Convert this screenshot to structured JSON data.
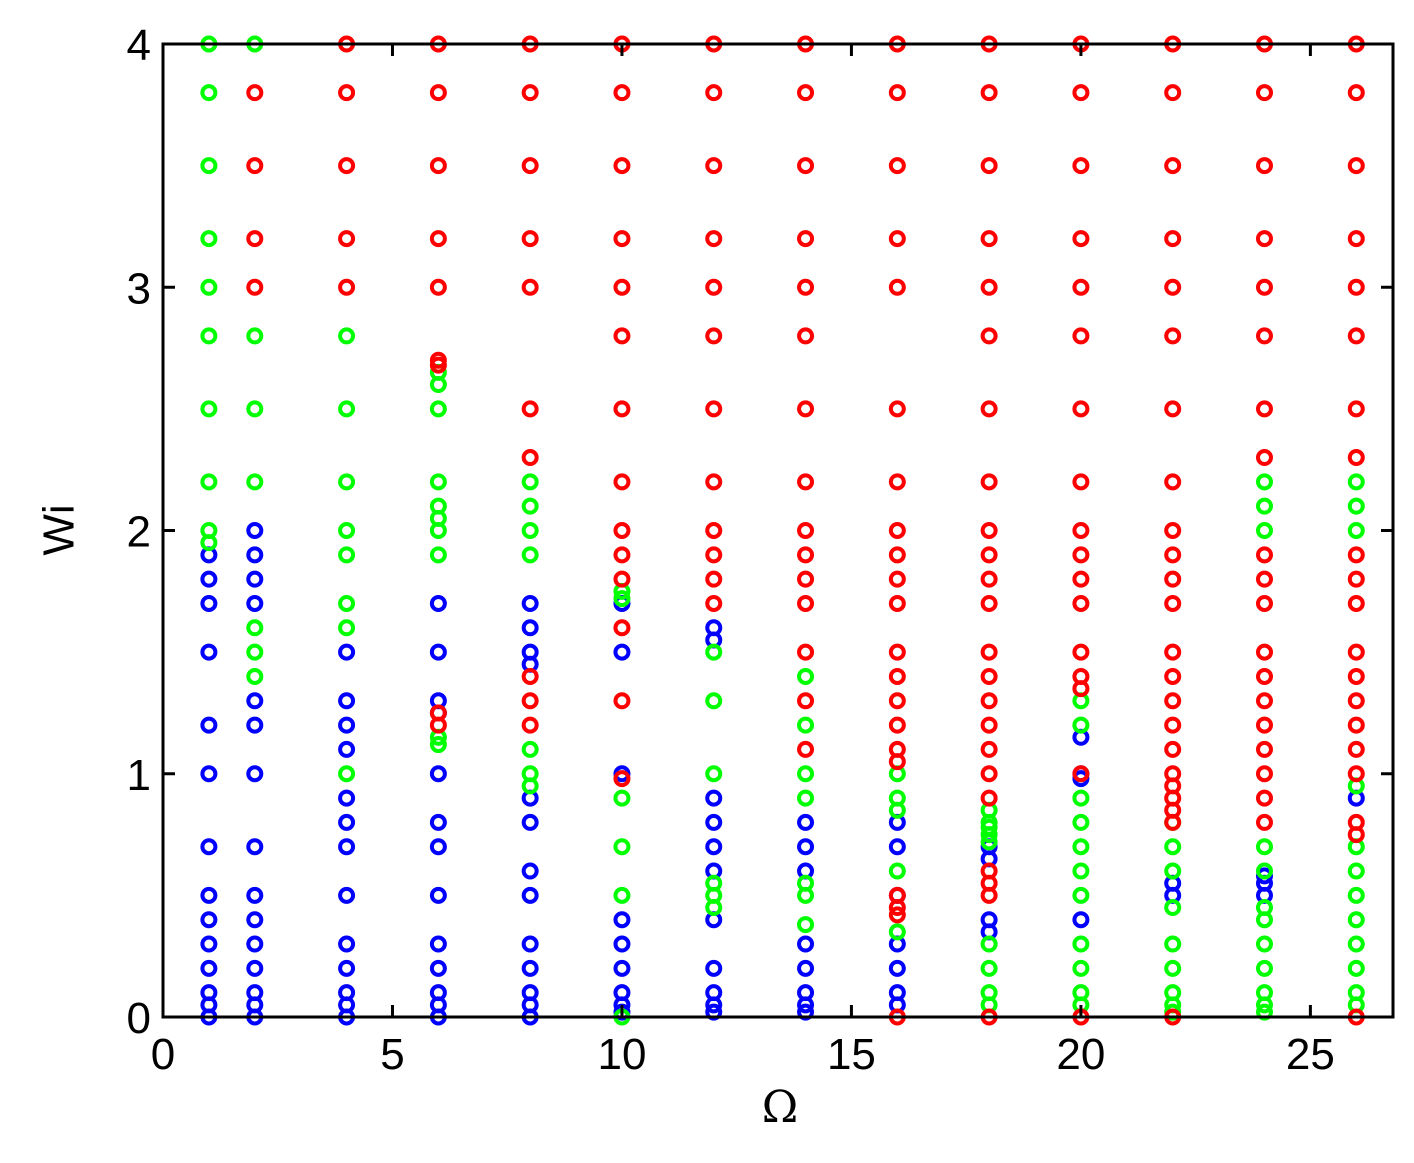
{
  "chart_data": {
    "type": "scatter",
    "xlabel": "Ω",
    "ylabel": "Wi",
    "xlim": [
      0,
      26.8
    ],
    "ylim": [
      0,
      4
    ],
    "xticks": [
      0,
      5,
      10,
      15,
      20,
      25
    ],
    "yticks": [
      0,
      1,
      2,
      3,
      4
    ],
    "series": [
      {
        "color": "#0000ff",
        "x": [
          1,
          1,
          1,
          1,
          1,
          1,
          1,
          1,
          1,
          1,
          1,
          1,
          1,
          1,
          2,
          2,
          2,
          2,
          2,
          2,
          2,
          2,
          2,
          2,
          2,
          2,
          2,
          2,
          2,
          4,
          4,
          4,
          4,
          4,
          4,
          4,
          4,
          4,
          4,
          4,
          4,
          4,
          6,
          6,
          6,
          6,
          6,
          6,
          6,
          6,
          6,
          6,
          6,
          6,
          6,
          8,
          8,
          8,
          8,
          8,
          8,
          8,
          8,
          8,
          8,
          8,
          8,
          8,
          10,
          10,
          10,
          10,
          10,
          10,
          10,
          10,
          10,
          12,
          12,
          12,
          12,
          12,
          12,
          12,
          12,
          12,
          12,
          12,
          14,
          14,
          14,
          14,
          14,
          14,
          14,
          14,
          16,
          16,
          16,
          16,
          16,
          16,
          16,
          18,
          18,
          18,
          18,
          20,
          20,
          20,
          20,
          22,
          22,
          24,
          24,
          24,
          26
        ],
        "y": [
          1.9,
          1.8,
          1.7,
          1.5,
          1.2,
          1.0,
          0.7,
          0.5,
          0.4,
          0.3,
          0.2,
          0.1,
          0.05,
          0,
          2.0,
          1.9,
          1.8,
          1.7,
          1.3,
          1.2,
          1.0,
          0.7,
          0.5,
          0.4,
          0.3,
          0.2,
          0.1,
          0.05,
          0,
          1.5,
          1.3,
          1.2,
          1.1,
          0.9,
          0.8,
          0.7,
          0.5,
          0.3,
          0.2,
          0.1,
          0.05,
          0,
          1.7,
          1.5,
          1.3,
          1.25,
          1.0,
          0.8,
          0.7,
          0.5,
          0.3,
          0.2,
          0.1,
          0.05,
          0,
          1.7,
          1.6,
          1.5,
          1.45,
          0.9,
          0.8,
          0.6,
          0.5,
          0.3,
          0.2,
          0.1,
          0.05,
          0,
          1.7,
          1.5,
          1.0,
          0.4,
          0.3,
          0.2,
          0.1,
          0.05,
          0.02,
          1.6,
          1.55,
          0.9,
          0.8,
          0.7,
          0.6,
          0.4,
          0.2,
          0.1,
          0.05,
          0.02,
          0.8,
          0.7,
          0.6,
          0.3,
          0.2,
          0.1,
          0.05,
          0.02,
          0.8,
          0.7,
          0.5,
          0.3,
          0.2,
          0.1,
          0.05,
          0.7,
          0.65,
          0.4,
          0.35,
          1.15,
          1.0,
          0.98,
          0.4,
          0.55,
          0.5,
          0.58,
          0.55,
          0.5,
          0.9
        ]
      },
      {
        "color": "#00ff00",
        "x": [
          1,
          1,
          1,
          1,
          1,
          1,
          1,
          1,
          1,
          1,
          2,
          2,
          2,
          2,
          2,
          2,
          2,
          4,
          4,
          4,
          4,
          4,
          4,
          4,
          4,
          6,
          6,
          6,
          6,
          6,
          6,
          6,
          6,
          6,
          6,
          8,
          8,
          8,
          8,
          8,
          8,
          8,
          10,
          10,
          10,
          10,
          10,
          10,
          12,
          12,
          12,
          12,
          12,
          12,
          14,
          14,
          14,
          14,
          14,
          14,
          14,
          16,
          16,
          16,
          16,
          16,
          18,
          18,
          18,
          18,
          18,
          18,
          18,
          18,
          18,
          20,
          20,
          20,
          20,
          20,
          20,
          20,
          20,
          20,
          20,
          20,
          22,
          22,
          22,
          22,
          22,
          22,
          22,
          22,
          22,
          24,
          24,
          24,
          24,
          24,
          24,
          24,
          24,
          24,
          24,
          24,
          24,
          26,
          26,
          26,
          26,
          26,
          26,
          26,
          26,
          26,
          26,
          26,
          26
        ],
        "y": [
          4,
          3.8,
          3.5,
          3.2,
          3.0,
          2.8,
          2.5,
          2.2,
          2.0,
          1.95,
          4,
          2.8,
          2.5,
          2.2,
          1.6,
          1.5,
          1.4,
          2.8,
          2.5,
          2.2,
          2.0,
          1.9,
          1.7,
          1.6,
          1.0,
          2.65,
          2.6,
          2.5,
          2.2,
          2.1,
          2.05,
          2.0,
          1.9,
          1.15,
          1.12,
          2.2,
          2.1,
          2.0,
          1.9,
          1.1,
          1.0,
          0.95,
          1.75,
          1.72,
          0.9,
          0.7,
          0.5,
          0,
          1.5,
          1.3,
          1.0,
          0.55,
          0.5,
          0.45,
          1.4,
          1.2,
          1.0,
          0.9,
          0.55,
          0.5,
          0.38,
          1.0,
          0.9,
          0.85,
          0.6,
          0.35,
          0.85,
          0.8,
          0.78,
          0.75,
          0.72,
          0.3,
          0.2,
          0.1,
          0.05,
          1.3,
          1.2,
          0.9,
          0.8,
          0.7,
          0.6,
          0.5,
          0.3,
          0.2,
          0.1,
          0.05,
          0.8,
          0.7,
          0.6,
          0.45,
          0.3,
          0.2,
          0.1,
          0.05,
          0.02,
          2.2,
          2.1,
          2.0,
          0.7,
          0.6,
          0.45,
          0.4,
          0.3,
          0.2,
          0.1,
          0.05,
          0.02,
          2.2,
          2.1,
          2.0,
          0.95,
          0.7,
          0.6,
          0.5,
          0.4,
          0.3,
          0.2,
          0.1,
          0.05
        ]
      },
      {
        "color": "#ff0000",
        "x": [
          2,
          2,
          2,
          2,
          4,
          4,
          4,
          4,
          4,
          6,
          6,
          6,
          6,
          6,
          6,
          6,
          6,
          6,
          8,
          8,
          8,
          8,
          8,
          8,
          8,
          8,
          8,
          8,
          10,
          10,
          10,
          10,
          10,
          10,
          10,
          10,
          10,
          10,
          10,
          10,
          10,
          10,
          12,
          12,
          12,
          12,
          12,
          12,
          12,
          12,
          12,
          12,
          12,
          12,
          14,
          14,
          14,
          14,
          14,
          14,
          14,
          14,
          14,
          14,
          14,
          14,
          14,
          14,
          14,
          16,
          16,
          16,
          16,
          16,
          16,
          16,
          16,
          16,
          16,
          16,
          16,
          16,
          16,
          16,
          16,
          16,
          16,
          16,
          16,
          16,
          18,
          18,
          18,
          18,
          18,
          18,
          18,
          18,
          18,
          18,
          18,
          18,
          18,
          18,
          18,
          18,
          18,
          18,
          18,
          18,
          18,
          18,
          18,
          20,
          20,
          20,
          20,
          20,
          20,
          20,
          20,
          20,
          20,
          20,
          20,
          20,
          20,
          20,
          20,
          20,
          22,
          22,
          22,
          22,
          22,
          22,
          22,
          22,
          22,
          22,
          22,
          22,
          22,
          22,
          22,
          22,
          22,
          22,
          22,
          22,
          22,
          22,
          22,
          24,
          24,
          24,
          24,
          24,
          24,
          24,
          24,
          24,
          24,
          24,
          24,
          24,
          24,
          24,
          24,
          24,
          24,
          24,
          26,
          26,
          26,
          26,
          26,
          26,
          26,
          26,
          26,
          26,
          26,
          26,
          26,
          26,
          26,
          26,
          26,
          26,
          26,
          26
        ],
        "y": [
          3.8,
          3.5,
          3.2,
          3.0,
          4,
          3.8,
          3.5,
          3.2,
          3.0,
          4,
          3.8,
          3.5,
          3.2,
          3.0,
          2.7,
          2.68,
          1.25,
          1.2,
          4,
          3.8,
          3.5,
          3.2,
          3.0,
          2.5,
          2.3,
          1.4,
          1.3,
          1.2,
          4,
          3.8,
          3.5,
          3.2,
          3.0,
          2.8,
          2.5,
          2.2,
          2.0,
          1.9,
          1.8,
          1.6,
          1.3,
          0.98,
          4,
          3.8,
          3.5,
          3.2,
          3.0,
          2.8,
          2.5,
          2.2,
          2.0,
          1.9,
          1.8,
          1.7,
          4,
          3.8,
          3.5,
          3.2,
          3.0,
          2.8,
          2.5,
          2.2,
          2.0,
          1.9,
          1.8,
          1.7,
          1.5,
          1.3,
          1.1,
          4,
          3.8,
          3.5,
          3.2,
          3.0,
          2.5,
          2.2,
          2.0,
          1.9,
          1.8,
          1.7,
          1.5,
          1.4,
          1.3,
          1.2,
          1.1,
          1.05,
          0.5,
          0.45,
          0.42,
          0,
          4,
          3.8,
          3.5,
          3.2,
          3.0,
          2.8,
          2.5,
          2.2,
          2.0,
          1.9,
          1.8,
          1.7,
          1.5,
          1.4,
          1.3,
          1.2,
          1.1,
          1.0,
          0.9,
          0.6,
          0.55,
          0.5,
          0,
          4,
          3.8,
          3.5,
          3.2,
          3.0,
          2.8,
          2.5,
          2.2,
          2.0,
          1.9,
          1.8,
          1.7,
          1.5,
          1.4,
          1.35,
          1.0,
          0,
          4,
          3.8,
          3.5,
          3.2,
          3.0,
          2.8,
          2.5,
          2.2,
          2.0,
          1.9,
          1.8,
          1.7,
          1.5,
          1.4,
          1.3,
          1.2,
          1.1,
          1.0,
          0.95,
          0.9,
          0.85,
          0.8,
          0,
          4,
          3.8,
          3.5,
          3.2,
          3.0,
          2.8,
          2.5,
          2.3,
          1.9,
          1.8,
          1.7,
          1.5,
          1.4,
          1.3,
          1.2,
          1.1,
          1.0,
          0.9,
          0.8,
          4,
          3.8,
          3.5,
          3.2,
          3.0,
          2.8,
          2.5,
          2.3,
          1.9,
          1.8,
          1.7,
          1.5,
          1.4,
          1.3,
          1.2,
          1.1,
          1.0,
          0.8,
          0.75,
          0
        ]
      }
    ]
  }
}
